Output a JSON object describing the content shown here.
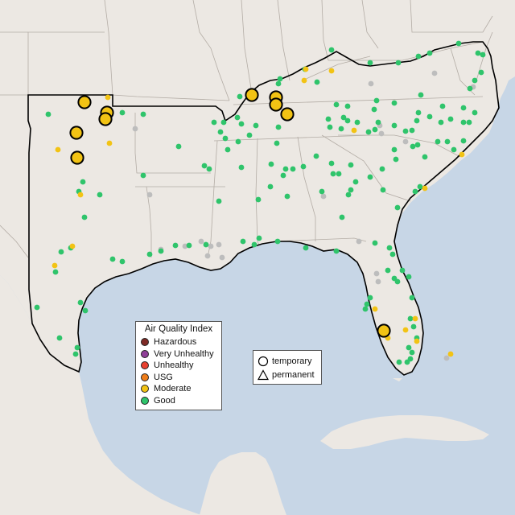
{
  "map": {
    "colors": {
      "water": "#c7d6e6",
      "land": "#ece8e3",
      "land_south": "#e9e5df",
      "state_line": "#b3aca5",
      "border": "#000000",
      "sensor_gray": "#bdbdbd"
    }
  },
  "legend": {
    "title": "Air Quality Index",
    "categories": [
      {
        "label": "Hazardous",
        "color": "#7e2a25"
      },
      {
        "label": "Very Unhealthy",
        "color": "#8f3f97"
      },
      {
        "label": "Unhealthy",
        "color": "#e8412f"
      },
      {
        "label": "USG",
        "color": "#ef7d1a"
      },
      {
        "label": "Moderate",
        "color": "#f2c314"
      },
      {
        "label": "Good",
        "color": "#2fc46b"
      }
    ]
  },
  "monitor_legend": {
    "items": [
      {
        "label": "temporary",
        "icon": "circle-icon"
      },
      {
        "label": "permanent",
        "icon": "triangle-icon"
      }
    ]
  }
}
